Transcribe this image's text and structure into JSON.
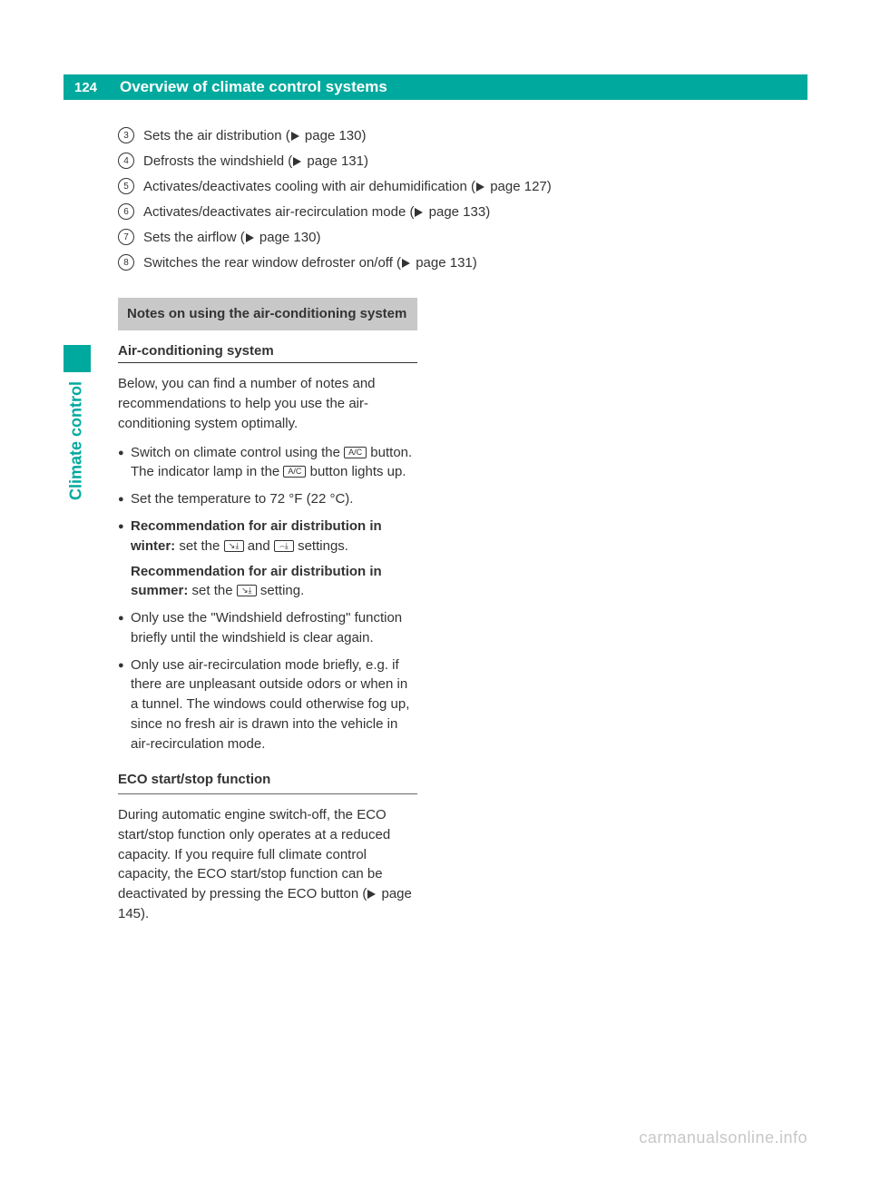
{
  "page_number": "124",
  "header_title": "Overview of climate control systems",
  "side_label": "Climate control",
  "legend": [
    {
      "num": "3",
      "text": "Sets the air distribution (",
      "page_ref": "page 130)"
    },
    {
      "num": "4",
      "text": "Defrosts the windshield (",
      "page_ref": "page 131)"
    },
    {
      "num": "5",
      "text": "Activates/deactivates cooling with air dehumidification (",
      "page_ref": "page 127)"
    },
    {
      "num": "6",
      "text": "Activates/deactivates air-recirculation mode (",
      "page_ref": "page 133)"
    },
    {
      "num": "7",
      "text": "Sets the airflow (",
      "page_ref": "page 130)"
    },
    {
      "num": "8",
      "text": "Switches the rear window defroster on/off (",
      "page_ref": "page 131)"
    }
  ],
  "notes_box": "Notes on using the air-conditioning system",
  "sub_head_1": "Air-conditioning system",
  "intro_para": "Below, you can find a number of notes and recommendations to help you use the air-conditioning system optimally.",
  "bullets": {
    "b1_a": "Switch on climate control using the ",
    "b1_b": " button. The indicator lamp in the ",
    "b1_c": " button lights up.",
    "ac_label": "A/C",
    "b2": "Set the temperature to 72 °F (22 °C).",
    "b3_bold": "Recommendation for air distribution in winter:",
    "b3_a": " set the ",
    "b3_mid": " and ",
    "b3_end": " settings.",
    "icon_winter_1": "↘⤓",
    "icon_winter_2": "⌢⤓",
    "b3s_bold": "Recommendation for air distribution in summer:",
    "b3s_a": " set the ",
    "b3s_end": " setting.",
    "icon_summer": "↘⤓",
    "b4": "Only use the \"Windshield defrosting\" function briefly until the windshield is clear again.",
    "b5": "Only use air-recirculation mode briefly, e.g. if there are unpleasant outside odors or when in a tunnel. The windows could otherwise fog up, since no fresh air is drawn into the vehicle in air-recirculation mode."
  },
  "sub_head_2": "ECO start/stop function",
  "eco_para_a": "During automatic engine switch-off, the ECO start/stop function only operates at a reduced capacity. If you require full climate control capacity, the ECO start/stop function can be deactivated by pressing the ECO button (",
  "eco_page_ref": "page 145).",
  "footer": "carmanualsonline.info",
  "colors": {
    "brand": "#00a99d",
    "grey_box": "#c8c8c8",
    "text": "#333333",
    "footer": "#c7c7c7"
  },
  "typography": {
    "body_fontsize": 15,
    "header_fontsize": 17,
    "side_fontsize": 18
  }
}
